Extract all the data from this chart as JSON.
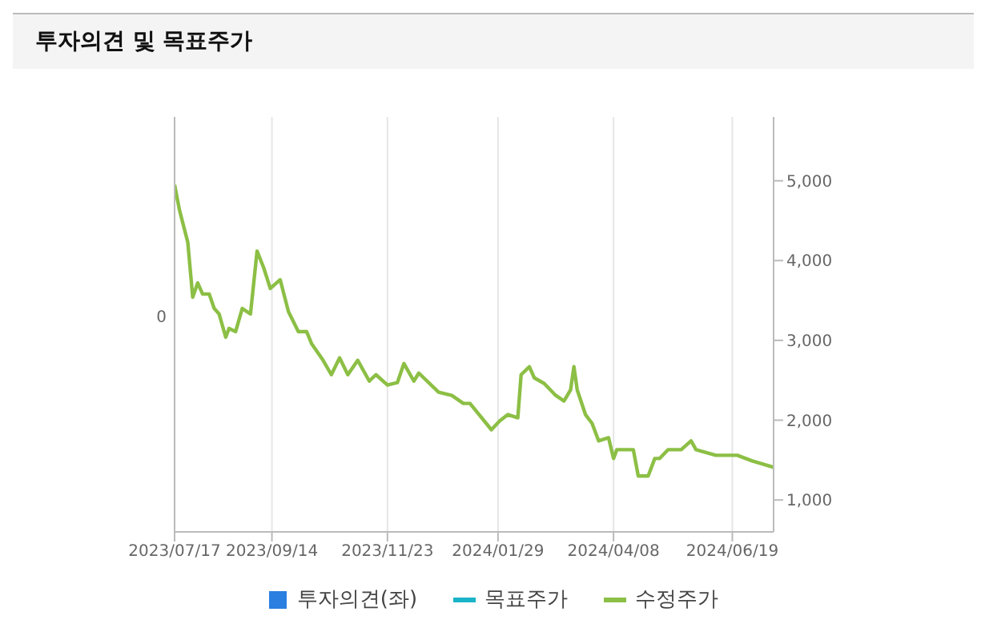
{
  "chart_data": {
    "type": "line",
    "title": "투자의견 및 목표주가",
    "x": [
      "2023-07-17",
      "2023-07-20",
      "2023-07-25",
      "2023-07-28",
      "2023-07-31",
      "2023-08-03",
      "2023-08-07",
      "2023-08-10",
      "2023-08-13",
      "2023-08-17",
      "2023-08-19",
      "2023-08-23",
      "2023-08-27",
      "2023-09-01",
      "2023-09-05",
      "2023-09-09",
      "2023-09-13",
      "2023-09-19",
      "2023-09-24",
      "2023-09-30",
      "2023-10-05",
      "2023-10-08",
      "2023-10-15",
      "2023-10-20",
      "2023-10-25",
      "2023-10-30",
      "2023-11-05",
      "2023-11-12",
      "2023-11-16",
      "2023-11-23",
      "2023-11-29",
      "2023-12-03",
      "2023-12-09",
      "2023-12-12",
      "2023-12-24",
      "2024-01-01",
      "2024-01-08",
      "2024-01-12",
      "2024-01-25",
      "2024-01-30",
      "2024-02-04",
      "2024-02-10",
      "2024-02-12",
      "2024-02-17",
      "2024-02-20",
      "2024-02-26",
      "2024-03-04",
      "2024-03-09",
      "2024-03-13",
      "2024-03-15",
      "2024-03-17",
      "2024-03-22",
      "2024-03-26",
      "2024-03-30",
      "2024-04-05",
      "2024-04-08",
      "2024-04-10",
      "2024-04-20",
      "2024-04-23",
      "2024-04-29",
      "2024-05-03",
      "2024-05-06",
      "2024-05-11",
      "2024-05-19",
      "2024-05-25",
      "2024-05-28",
      "2024-06-09",
      "2024-06-22",
      "2024-07-01",
      "2024-07-14"
    ],
    "series": [
      {
        "name": "투자의견(좌)",
        "type": "bar",
        "color": "#2a7fe0",
        "values": [
          null,
          null,
          null,
          null,
          null,
          null,
          null,
          null,
          null,
          null,
          null,
          null,
          null,
          null,
          null,
          null,
          null,
          null,
          null,
          null,
          null,
          null,
          null,
          null,
          null,
          null,
          null,
          null,
          null,
          null,
          null,
          null,
          null,
          null,
          null,
          null,
          null,
          null,
          null,
          null,
          null,
          null,
          null,
          null,
          null,
          null,
          null,
          null,
          null,
          null,
          null,
          null,
          null,
          null,
          null,
          null,
          null,
          null,
          null,
          null,
          null,
          null,
          null,
          null,
          null,
          null,
          null,
          null,
          null,
          null
        ]
      },
      {
        "name": "목표주가",
        "type": "line",
        "axis": "y2",
        "color": "#1ab3c8",
        "values": [
          null,
          null,
          null,
          null,
          null,
          null,
          null,
          null,
          null,
          null,
          null,
          null,
          null,
          null,
          null,
          null,
          null,
          null,
          null,
          null,
          null,
          null,
          null,
          null,
          null,
          null,
          null,
          null,
          null,
          null,
          null,
          null,
          null,
          null,
          null,
          null,
          null,
          null,
          null,
          null,
          null,
          null,
          null,
          null,
          null,
          null,
          null,
          null,
          null,
          null,
          null,
          null,
          null,
          null,
          null,
          null,
          null,
          null,
          null,
          null,
          null,
          null,
          null,
          null,
          null,
          null,
          null,
          null,
          null,
          null
        ]
      },
      {
        "name": "수정주가",
        "axis": "y2",
        "color": "#8cbf45",
        "values": [
          4950,
          4630,
          4230,
          3540,
          3720,
          3580,
          3580,
          3400,
          3330,
          3040,
          3150,
          3110,
          3400,
          3330,
          4120,
          3910,
          3650,
          3760,
          3360,
          3110,
          3110,
          2960,
          2750,
          2570,
          2780,
          2570,
          2750,
          2490,
          2570,
          2440,
          2470,
          2710,
          2490,
          2590,
          2350,
          2310,
          2210,
          2210,
          1880,
          1990,
          2070,
          2030,
          2570,
          2670,
          2530,
          2460,
          2310,
          2240,
          2380,
          2670,
          2380,
          2070,
          1960,
          1740,
          1780,
          1520,
          1630,
          1630,
          1300,
          1300,
          1520,
          1520,
          1630,
          1630,
          1740,
          1630,
          1560,
          1560,
          1490,
          1410
        ]
      }
    ],
    "xlim": [
      "2023-07-17",
      "2024-07-14"
    ],
    "xticks": [
      {
        "value": "2023-07-17",
        "label": "2023/07/17"
      },
      {
        "value": "2023-09-14",
        "label": "2023/09/14"
      },
      {
        "value": "2023-11-23",
        "label": "2023/11/23"
      },
      {
        "value": "2024-01-29",
        "label": "2024/01/29"
      },
      {
        "value": "2024-04-08",
        "label": "2024/04/08"
      },
      {
        "value": "2024-06-19",
        "label": "2024/06/19"
      }
    ],
    "annotations": [
      "0"
    ],
    "y2lim": [
      600,
      5800
    ],
    "y2ticks": [
      {
        "value": 1000,
        "label": "1,000"
      },
      {
        "value": 2000,
        "label": "2,000"
      },
      {
        "value": 3000,
        "label": "3,000"
      },
      {
        "value": 4000,
        "label": "4,000"
      },
      {
        "value": 5000,
        "label": "5,000"
      }
    ],
    "grid": "x",
    "legend": "bottom",
    "marker": "none",
    "line_style": "solid"
  }
}
